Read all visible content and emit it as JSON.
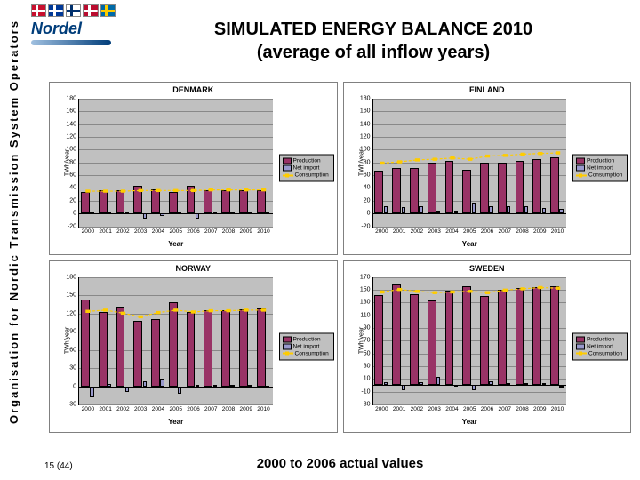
{
  "sidebar_label": "Organisation for Nordic Transmission System Operators",
  "logo": {
    "text": "Nordel",
    "flag_colors": [
      {
        "bg": "#c8102e",
        "cross": "#fff"
      },
      {
        "bg": "#003897",
        "cross": "#fff"
      },
      {
        "bg": "#ffffff",
        "cross": "#002f6c"
      },
      {
        "bg": "#ba0c2f",
        "cross": "#fff"
      },
      {
        "bg": "#006aa7",
        "cross": "#fecc00"
      }
    ]
  },
  "title_line1": "SIMULATED ENERGY BALANCE 2010",
  "title_line2": "(average of all inflow years)",
  "legend_labels": {
    "production": "Production",
    "netimport": "Net import",
    "consumption": "Consumption"
  },
  "series_colors": {
    "production": "#993366",
    "netimport": "#9999cc",
    "consumption": "#ffcc00"
  },
  "chart_bg": "#c0c0c0",
  "grid_color": "#888888",
  "ylabel": "TWh/year",
  "xlabel": "Year",
  "years": [
    "2000",
    "2001",
    "2002",
    "2003",
    "2004",
    "2005",
    "2006",
    "2007",
    "2008",
    "2009",
    "2010"
  ],
  "panels": [
    {
      "title": "DENMARK",
      "ymin": -20,
      "ymax": 180,
      "ystep": 20,
      "production": [
        34,
        36,
        37,
        44,
        38,
        34,
        43,
        37,
        37,
        37,
        37
      ],
      "netimport": [
        1,
        2,
        -1,
        -8,
        -4,
        2,
        -8,
        0,
        0,
        0,
        1
      ],
      "consumption": [
        35,
        35,
        35,
        36,
        36,
        36,
        36,
        37,
        37,
        37,
        37
      ]
    },
    {
      "title": "FINLAND",
      "ymin": -20,
      "ymax": 180,
      "ystep": 20,
      "production": [
        67,
        71,
        72,
        80,
        82,
        68,
        79,
        80,
        82,
        85,
        88
      ],
      "netimport": [
        12,
        10,
        12,
        5,
        5,
        17,
        11,
        11,
        11,
        9,
        7
      ],
      "consumption": [
        79,
        81,
        84,
        85,
        87,
        85,
        90,
        91,
        93,
        94,
        95
      ]
    },
    {
      "title": "NORWAY",
      "ymin": -30,
      "ymax": 180,
      "ystep": 30,
      "production": [
        143,
        122,
        131,
        107,
        110,
        138,
        122,
        125,
        125,
        127,
        128
      ],
      "netimport": [
        -19,
        4,
        -10,
        8,
        12,
        -12,
        1,
        0,
        0,
        -1,
        -2
      ],
      "consumption": [
        124,
        126,
        121,
        115,
        122,
        126,
        123,
        125,
        125,
        126,
        126
      ]
    },
    {
      "title": "SWEDEN",
      "ymin": -30,
      "ymax": 170,
      "ystep": 20,
      "production": [
        142,
        158,
        143,
        133,
        149,
        155,
        140,
        150,
        152,
        154,
        156
      ],
      "netimport": [
        5,
        -7,
        5,
        13,
        -2,
        -7,
        6,
        0,
        0,
        0,
        -3
      ],
      "consumption": [
        147,
        151,
        148,
        146,
        147,
        148,
        146,
        150,
        152,
        154,
        153
      ]
    }
  ],
  "footer": "2000 to 2006 actual values",
  "page_num": "15 (44)"
}
